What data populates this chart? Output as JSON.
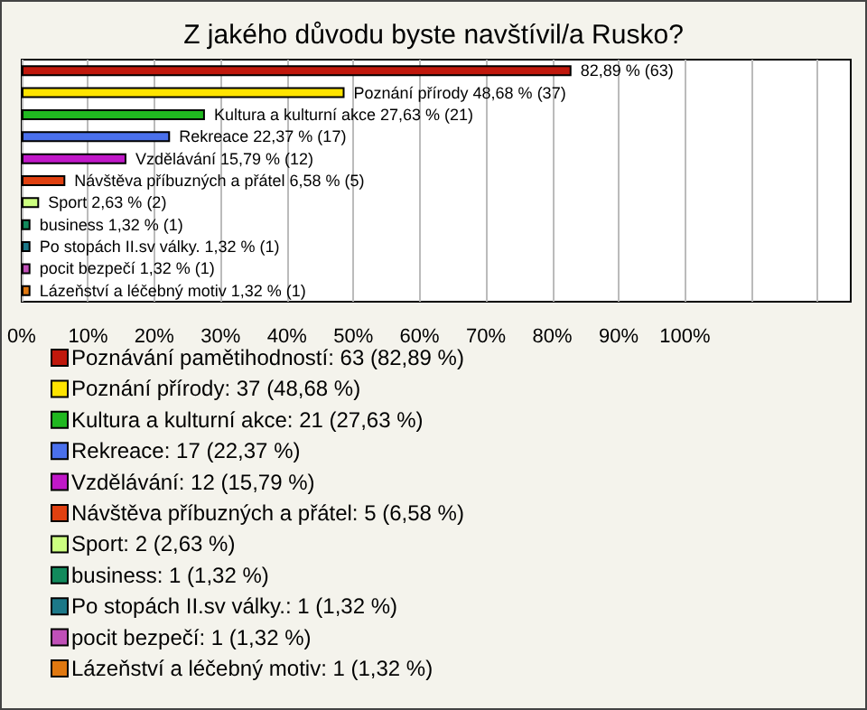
{
  "chart_data": {
    "type": "bar",
    "title": "Z jakého důvodu byste navštívil/a Rusko?",
    "orientation": "horizontal",
    "stacked": true,
    "legend": "bottom",
    "grid": "x",
    "categories": [
      null,
      null,
      null,
      null,
      null,
      null,
      null,
      null,
      null,
      null,
      null
    ],
    "xlim": [
      0,
      125
    ],
    "xticks": [
      {
        "value": 0,
        "label": "0%"
      },
      {
        "value": 10,
        "label": "10%"
      },
      {
        "value": 20,
        "label": "20%"
      },
      {
        "value": 30,
        "label": "30%"
      },
      {
        "value": 40,
        "label": "40%"
      },
      {
        "value": 50,
        "label": "50%"
      },
      {
        "value": 60,
        "label": "60%"
      },
      {
        "value": 70,
        "label": "70%"
      },
      {
        "value": 80,
        "label": "80%"
      },
      {
        "value": 90,
        "label": "90%"
      },
      {
        "value": 100,
        "label": "100%"
      },
      {
        "value": 110,
        "label": null
      },
      {
        "value": 120,
        "label": null
      }
    ],
    "series": [
      {
        "name": "Poznávání pamětihodností: 63 (82,89 %)",
        "color": "#c0180c",
        "values": [
          82.89,
          null,
          null,
          null,
          null,
          null,
          null,
          null,
          null,
          null,
          null
        ],
        "value_labels": [
          "82,89 % (63)",
          null,
          null,
          null,
          null,
          null,
          null,
          null,
          null,
          null,
          null
        ]
      },
      {
        "name": "Poznání přírody: 37 (48,68 %)",
        "color": "#ffe400",
        "values": [
          null,
          48.68,
          null,
          null,
          null,
          null,
          null,
          null,
          null,
          null,
          null
        ],
        "value_labels": [
          null,
          "Poznání přírody 48,68 % (37)",
          null,
          null,
          null,
          null,
          null,
          null,
          null,
          null,
          null
        ]
      },
      {
        "name": "Kultura a kulturní akce: 21 (27,63 %)",
        "color": "#20b820",
        "values": [
          null,
          null,
          27.63,
          null,
          null,
          null,
          null,
          null,
          null,
          null,
          null
        ],
        "value_labels": [
          null,
          null,
          "Kultura a kulturní akce 27,63 % (21)",
          null,
          null,
          null,
          null,
          null,
          null,
          null,
          null
        ]
      },
      {
        "name": "Rekreace: 17 (22,37 %)",
        "color": "#4a70ec",
        "values": [
          null,
          null,
          null,
          22.37,
          null,
          null,
          null,
          null,
          null,
          null,
          null
        ],
        "value_labels": [
          null,
          null,
          null,
          "Rekreace 22,37 % (17)",
          null,
          null,
          null,
          null,
          null,
          null,
          null
        ]
      },
      {
        "name": "Vzdělávání: 12 (15,79 %)",
        "color": "#c018c8",
        "values": [
          null,
          null,
          null,
          null,
          15.79,
          null,
          null,
          null,
          null,
          null,
          null
        ],
        "value_labels": [
          null,
          null,
          null,
          null,
          "Vzdělávání 15,79 % (12)",
          null,
          null,
          null,
          null,
          null,
          null
        ]
      },
      {
        "name": "Návštěva příbuzných a přátel: 5 (6,58 %)",
        "color": "#e04010",
        "values": [
          null,
          null,
          null,
          null,
          null,
          6.58,
          null,
          null,
          null,
          null,
          null
        ],
        "value_labels": [
          null,
          null,
          null,
          null,
          null,
          "Návštěva příbuzných a přátel 6,58 % (5)",
          null,
          null,
          null,
          null,
          null
        ]
      },
      {
        "name": "Sport: 2 (2,63 %)",
        "color": "#ccff80",
        "values": [
          null,
          null,
          null,
          null,
          null,
          null,
          2.63,
          null,
          null,
          null,
          null
        ],
        "value_labels": [
          null,
          null,
          null,
          null,
          null,
          null,
          "Sport 2,63 % (2)",
          null,
          null,
          null,
          null
        ]
      },
      {
        "name": "business: 1 (1,32 %)",
        "color": "#128a5c",
        "values": [
          null,
          null,
          null,
          null,
          null,
          null,
          null,
          1.32,
          null,
          null,
          null
        ],
        "value_labels": [
          null,
          null,
          null,
          null,
          null,
          null,
          null,
          "business 1,32 % (1)",
          null,
          null,
          null
        ]
      },
      {
        "name": "Po stopách II.sv války.: 1 (1,32 %)",
        "color": "#1c7888",
        "values": [
          null,
          null,
          null,
          null,
          null,
          null,
          null,
          null,
          1.32,
          null,
          null
        ],
        "value_labels": [
          null,
          null,
          null,
          null,
          null,
          null,
          null,
          null,
          "Po stopách II.sv války. 1,32 % (1)",
          null,
          null
        ]
      },
      {
        "name": "pocit bezpečí: 1 (1,32 %)",
        "color": "#c050b8",
        "values": [
          null,
          null,
          null,
          null,
          null,
          null,
          null,
          null,
          null,
          1.32,
          null
        ],
        "value_labels": [
          null,
          null,
          null,
          null,
          null,
          null,
          null,
          null,
          null,
          "pocit bezpečí 1,32 % (1)",
          null
        ]
      },
      {
        "name": "Lázeňství a léčebný motiv: 1 (1,32 %)",
        "color": "#e07810",
        "values": [
          null,
          null,
          null,
          null,
          null,
          null,
          null,
          null,
          null,
          null,
          1.32
        ],
        "value_labels": [
          null,
          null,
          null,
          null,
          null,
          null,
          null,
          null,
          null,
          null,
          "Lázeňství a léčebný motiv 1,32 % (1)"
        ]
      }
    ]
  }
}
